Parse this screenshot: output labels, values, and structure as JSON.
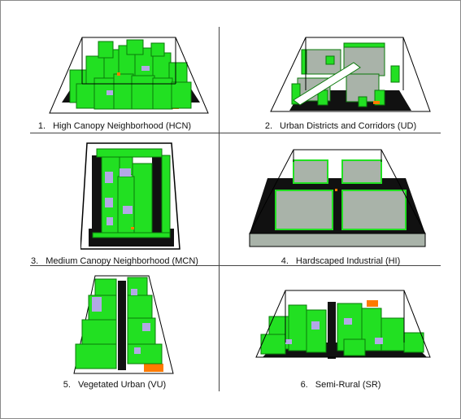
{
  "figure": {
    "panels": [
      {
        "number": "1.",
        "title": "High Canopy Neighborhood (HCN)"
      },
      {
        "number": "2.",
        "title": "Urban Districts and Corridors (UD)"
      },
      {
        "number": "3.",
        "title": "Medium Canopy Neighborhood (MCN)"
      },
      {
        "number": "4.",
        "title": "Hardscaped Industrial (HI)"
      },
      {
        "number": "5.",
        "title": "Vegetated Urban (VU)"
      },
      {
        "number": "6.",
        "title": "Semi-Rural (SR)"
      }
    ],
    "colors": {
      "vegetation": "#22e022",
      "vegetation_dark": "#0a7a0a",
      "roof": "#b3a8e6",
      "pavement_gray": "#a9b3a9",
      "road": "#111111",
      "bare_soil": "#ff7a00",
      "box_edge": "#000000"
    }
  }
}
